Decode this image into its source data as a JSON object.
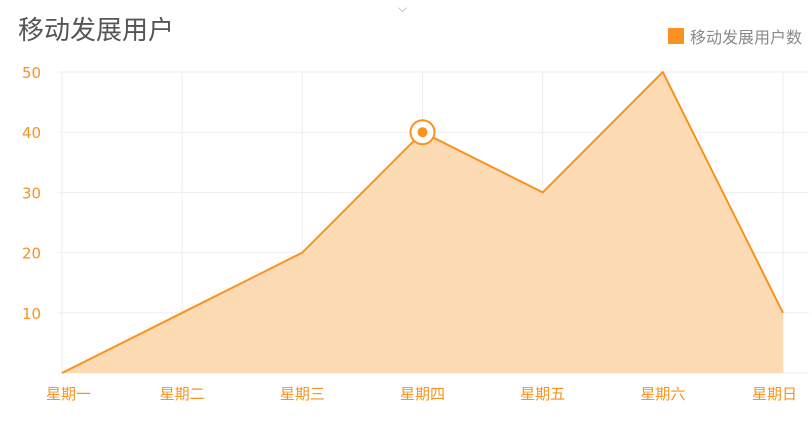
{
  "title": "移动发展用户",
  "toggle_icon": "chevron-down-icon",
  "legend": {
    "label": "移动发展用户数",
    "color": "#f7931e"
  },
  "colors": {
    "line": "#f7931e",
    "area": "#fcdbb4",
    "tick_text": "#f7931e",
    "grid": "#eeeeee"
  },
  "chart_data": {
    "type": "area",
    "categories": [
      "星期一",
      "星期二",
      "星期三",
      "星期四",
      "星期五",
      "星期六",
      "星期日"
    ],
    "series": [
      {
        "name": "移动发展用户数",
        "values": [
          0,
          10,
          20,
          40,
          30,
          50,
          10
        ]
      }
    ],
    "ylim": [
      0,
      50
    ],
    "yticks": [
      10,
      20,
      30,
      40,
      50
    ],
    "highlighted_index": 3,
    "grid": true,
    "legend_position": "top-right"
  }
}
